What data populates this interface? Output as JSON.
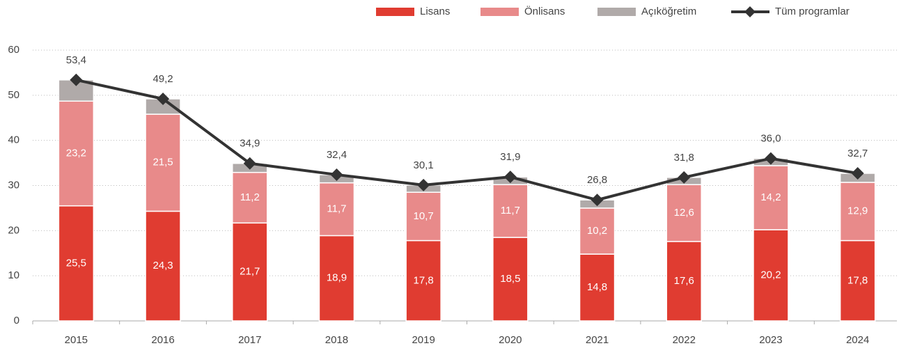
{
  "chart_data": {
    "type": "bar",
    "stacked": true,
    "categories": [
      "2015",
      "2016",
      "2017",
      "2018",
      "2019",
      "2020",
      "2021",
      "2022",
      "2023",
      "2024"
    ],
    "series": [
      {
        "name": "Lisans",
        "color": "#e03c31",
        "values": [
          25.5,
          24.3,
          21.7,
          18.9,
          17.8,
          18.5,
          14.8,
          17.6,
          20.2,
          17.8
        ],
        "value_labels": [
          "25,5",
          "24,3",
          "21,7",
          "18,9",
          "17,8",
          "18,5",
          "14,8",
          "17,6",
          "20,2",
          "17,8"
        ]
      },
      {
        "name": "Önlisans",
        "color": "#e88a8a",
        "values": [
          23.2,
          21.5,
          11.2,
          11.7,
          10.7,
          11.7,
          10.2,
          12.6,
          14.2,
          12.9
        ],
        "value_labels": [
          "23,2",
          "21,5",
          "11,2",
          "11,7",
          "10,7",
          "11,7",
          "10,2",
          "12,6",
          "14,2",
          "12,9"
        ]
      },
      {
        "name": "Açıköğretim",
        "color": "#b0aaa9",
        "values": [
          4.7,
          3.4,
          2.0,
          1.8,
          1.6,
          1.7,
          1.8,
          1.6,
          1.6,
          2.0
        ]
      },
      {
        "name": "Tüm programlar",
        "type": "line",
        "color": "#333333",
        "values": [
          53.4,
          49.2,
          34.9,
          32.4,
          30.1,
          31.9,
          26.8,
          31.8,
          36.0,
          32.7
        ],
        "value_labels": [
          "53,4",
          "49,2",
          "34,9",
          "32,4",
          "30,1",
          "31,9",
          "26,8",
          "31,8",
          "36,0",
          "32,7"
        ]
      }
    ],
    "ylim": [
      0,
      60
    ],
    "yticks": [
      0,
      10,
      20,
      30,
      40,
      50,
      60
    ],
    "grid": true,
    "legend": "top"
  }
}
